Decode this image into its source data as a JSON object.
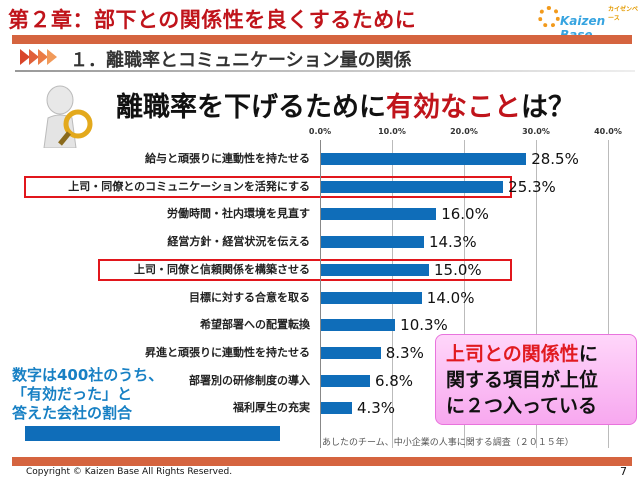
{
  "header": {
    "chapter": "第２章：部下との関係性を良くするために",
    "logo_small": "カイゼンベース",
    "logo_text": "Kaizen Base",
    "section": "１．離職率とコミュニケーション量の関係"
  },
  "question": {
    "part1": "離職率を下げるために",
    "part2": "有効なこと",
    "part3": "は？"
  },
  "chart_data": {
    "type": "bar",
    "orientation": "horizontal",
    "xlim": [
      0,
      40
    ],
    "ticks": [
      "0.0%",
      "10.0%",
      "20.0%",
      "30.0%",
      "40.0%"
    ],
    "grid": true,
    "bar_color": "#0f6db9",
    "categories": [
      "給与と頑張りに連動性を持たせる",
      "上司・同僚とのコミュニケーションを活発にする",
      "労働時間・社内環境を見直す",
      "経営方針・経営状況を伝える",
      "上司・同僚と信頼関係を構築させる",
      "目標に対する合意を取る",
      "希望部署への配置転換",
      "昇進と頑張りに連動性を持たせる",
      "部署別の研修制度の導入",
      "福利厚生の充実"
    ],
    "values": [
      28.5,
      25.3,
      16.0,
      14.3,
      15.0,
      14.0,
      10.3,
      8.3,
      6.8,
      4.3
    ],
    "labels": [
      "28.5%",
      "25.3%",
      "16.0%",
      "14.3%",
      "15.0%",
      "14.0%",
      "10.3%",
      "8.3%",
      "6.8%",
      "4.3%"
    ],
    "highlighted": [
      1,
      4
    ],
    "highlight_color": "#e1161c"
  },
  "note": {
    "line1": "数字は400社のうち、",
    "line2": "「有効だった」と",
    "line3": "答えた会社の割合"
  },
  "source": "あしたのチーム、中小企業の人事に関する調査（２０１５年）",
  "callout": {
    "red": "上司との関係性",
    "l1": "に",
    "l2": "関する項目が上位",
    "l3": "に２つ入っている"
  },
  "footer": {
    "copyright": "Copyright ©  Kaizen Base  All Rights Reserved.",
    "page": "7"
  }
}
